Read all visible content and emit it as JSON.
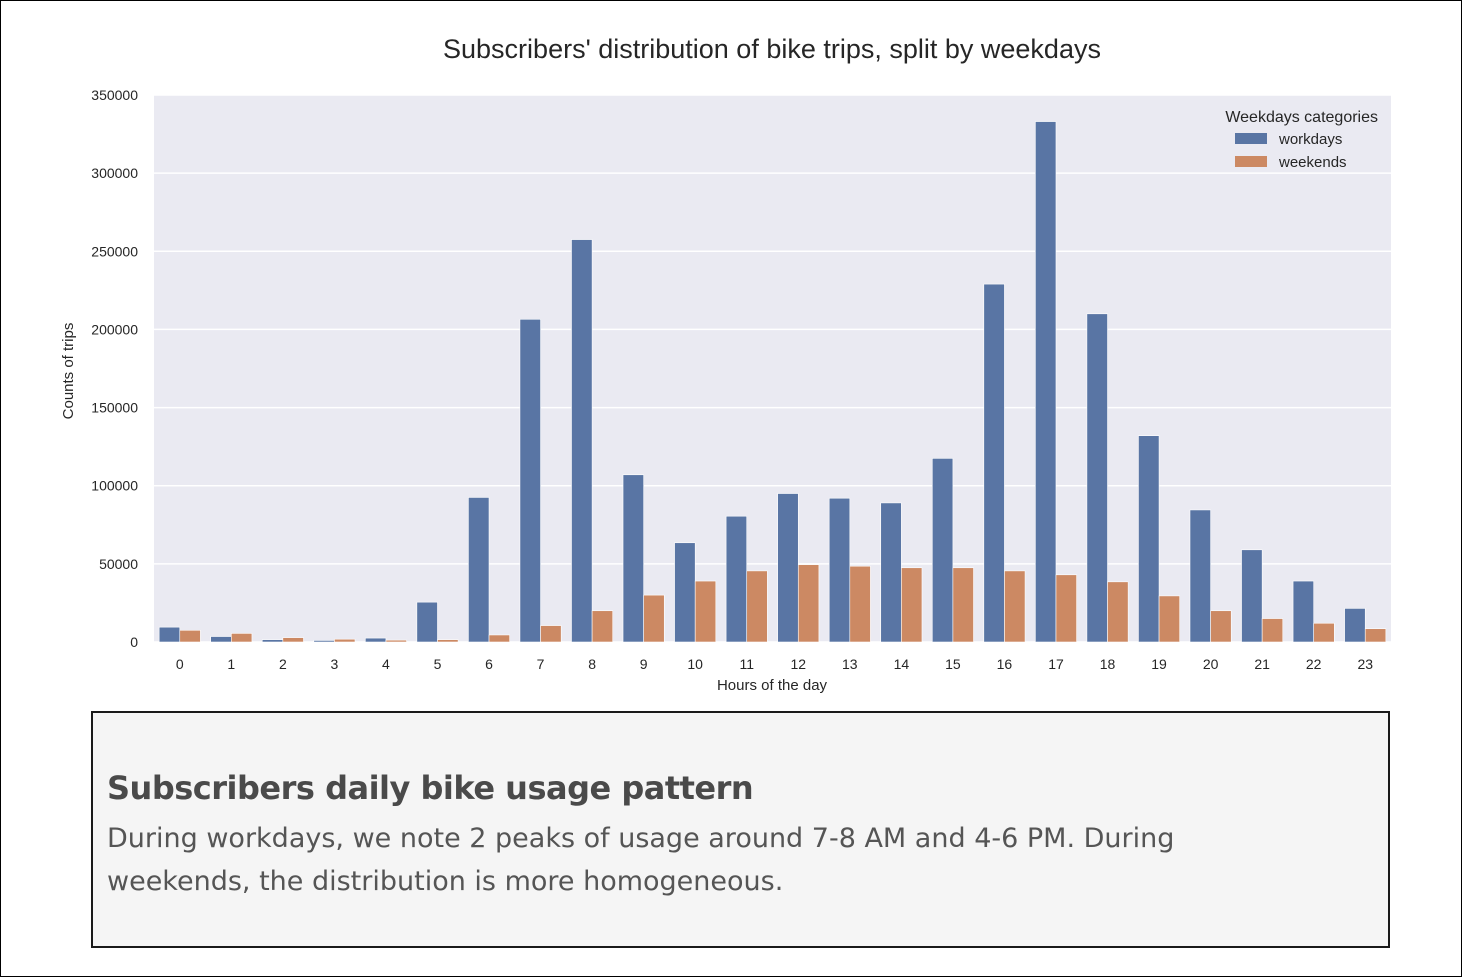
{
  "chart_data": {
    "type": "bar",
    "title": "Subscribers' distribution of bike trips, split by weekdays",
    "xlabel": "Hours of the day",
    "ylabel": "Counts of trips",
    "ylim": [
      0,
      350000
    ],
    "yticks": [
      0,
      50000,
      100000,
      150000,
      200000,
      250000,
      300000,
      350000
    ],
    "categories": [
      "0",
      "1",
      "2",
      "3",
      "4",
      "5",
      "6",
      "7",
      "8",
      "9",
      "10",
      "11",
      "12",
      "13",
      "14",
      "15",
      "16",
      "17",
      "18",
      "19",
      "20",
      "21",
      "22",
      "23"
    ],
    "legend": {
      "title": "Weekdays categories",
      "placement": "top-right"
    },
    "grid": true,
    "series": [
      {
        "name": "workdays",
        "color": "#5975a4",
        "values": [
          9500,
          3500,
          1500,
          1000,
          2500,
          25500,
          92500,
          206500,
          257500,
          107000,
          63500,
          80500,
          95000,
          92000,
          89000,
          117500,
          229000,
          333000,
          210000,
          132000,
          84500,
          59000,
          39000,
          21500
        ]
      },
      {
        "name": "weekends",
        "color": "#cc8963",
        "values": [
          7500,
          5500,
          2800,
          1800,
          1200,
          1500,
          4500,
          10500,
          20000,
          30000,
          39000,
          45500,
          49500,
          48500,
          47500,
          47500,
          45500,
          43000,
          38500,
          29500,
          20000,
          15000,
          12000,
          8500
        ]
      }
    ]
  },
  "note": {
    "heading": "Subscribers daily bike usage pattern",
    "body": "During workdays, we note 2 peaks of usage around 7-8 AM and 4-6 PM. During weekends, the distribution is more homogeneous."
  }
}
